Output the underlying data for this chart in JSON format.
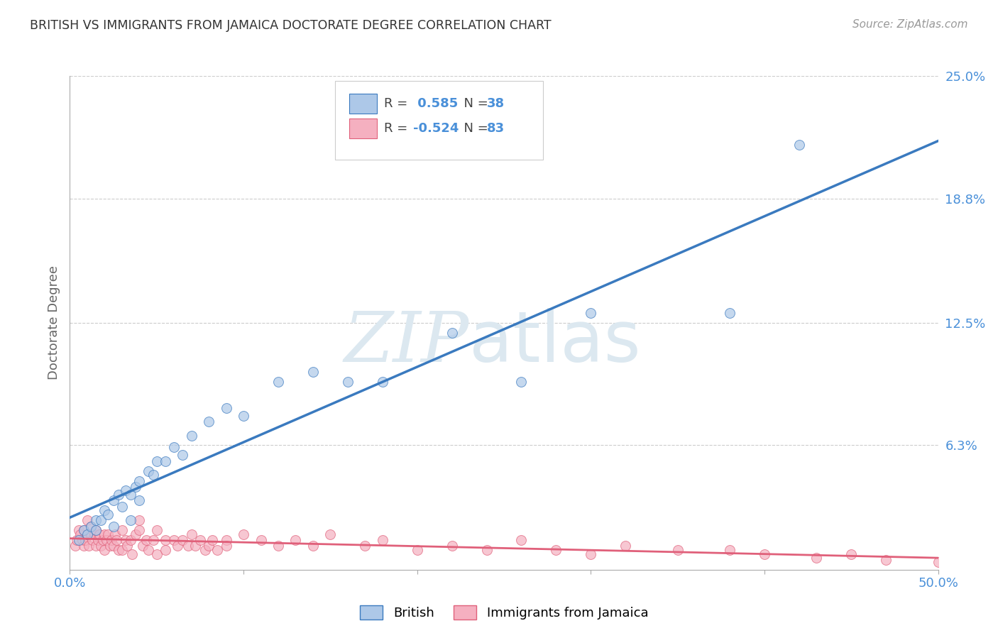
{
  "title": "BRITISH VS IMMIGRANTS FROM JAMAICA DOCTORATE DEGREE CORRELATION CHART",
  "source": "Source: ZipAtlas.com",
  "ylabel": "Doctorate Degree",
  "xlabel": "",
  "xlim": [
    0.0,
    0.5
  ],
  "ylim": [
    0.0,
    0.25
  ],
  "xticks": [
    0.0,
    0.1,
    0.2,
    0.3,
    0.4,
    0.5
  ],
  "xticklabels": [
    "0.0%",
    "",
    "",
    "",
    "",
    "50.0%"
  ],
  "ytick_labels_right": [
    "25.0%",
    "18.8%",
    "12.5%",
    "6.3%",
    ""
  ],
  "ytick_vals_right": [
    0.25,
    0.188,
    0.125,
    0.063,
    0.0
  ],
  "british_R": 0.585,
  "british_N": 38,
  "jamaica_R": -0.524,
  "jamaica_N": 83,
  "british_color": "#adc8e8",
  "jamaica_color": "#f5b0c0",
  "british_line_color": "#3a7abf",
  "jamaica_line_color": "#e0607a",
  "watermark_color": "#dce8f0",
  "background_color": "#ffffff",
  "british_x": [
    0.005,
    0.008,
    0.01,
    0.012,
    0.015,
    0.015,
    0.018,
    0.02,
    0.022,
    0.025,
    0.025,
    0.028,
    0.03,
    0.032,
    0.035,
    0.035,
    0.038,
    0.04,
    0.04,
    0.045,
    0.048,
    0.05,
    0.055,
    0.06,
    0.065,
    0.07,
    0.08,
    0.09,
    0.1,
    0.12,
    0.14,
    0.16,
    0.18,
    0.22,
    0.26,
    0.3,
    0.38,
    0.42
  ],
  "british_y": [
    0.015,
    0.02,
    0.018,
    0.022,
    0.025,
    0.02,
    0.025,
    0.03,
    0.028,
    0.035,
    0.022,
    0.038,
    0.032,
    0.04,
    0.038,
    0.025,
    0.042,
    0.045,
    0.035,
    0.05,
    0.048,
    0.055,
    0.055,
    0.062,
    0.058,
    0.068,
    0.075,
    0.082,
    0.078,
    0.095,
    0.1,
    0.095,
    0.095,
    0.12,
    0.095,
    0.13,
    0.13,
    0.215
  ],
  "jamaica_x": [
    0.003,
    0.004,
    0.005,
    0.006,
    0.007,
    0.008,
    0.008,
    0.009,
    0.01,
    0.01,
    0.011,
    0.012,
    0.012,
    0.013,
    0.014,
    0.015,
    0.015,
    0.016,
    0.017,
    0.018,
    0.019,
    0.02,
    0.02,
    0.021,
    0.022,
    0.023,
    0.024,
    0.025,
    0.026,
    0.027,
    0.028,
    0.03,
    0.03,
    0.032,
    0.033,
    0.035,
    0.036,
    0.038,
    0.04,
    0.04,
    0.042,
    0.044,
    0.045,
    0.048,
    0.05,
    0.05,
    0.055,
    0.055,
    0.06,
    0.062,
    0.065,
    0.068,
    0.07,
    0.072,
    0.075,
    0.078,
    0.08,
    0.082,
    0.085,
    0.09,
    0.09,
    0.1,
    0.11,
    0.12,
    0.13,
    0.14,
    0.15,
    0.17,
    0.18,
    0.2,
    0.22,
    0.24,
    0.26,
    0.28,
    0.3,
    0.32,
    0.35,
    0.38,
    0.4,
    0.43,
    0.45,
    0.47,
    0.5
  ],
  "jamaica_y": [
    0.012,
    0.015,
    0.02,
    0.018,
    0.015,
    0.012,
    0.02,
    0.015,
    0.018,
    0.025,
    0.012,
    0.018,
    0.022,
    0.015,
    0.018,
    0.02,
    0.012,
    0.015,
    0.018,
    0.012,
    0.015,
    0.018,
    0.01,
    0.015,
    0.018,
    0.012,
    0.015,
    0.012,
    0.018,
    0.015,
    0.01,
    0.02,
    0.01,
    0.015,
    0.012,
    0.015,
    0.008,
    0.018,
    0.02,
    0.025,
    0.012,
    0.015,
    0.01,
    0.015,
    0.02,
    0.008,
    0.015,
    0.01,
    0.015,
    0.012,
    0.015,
    0.012,
    0.018,
    0.012,
    0.015,
    0.01,
    0.012,
    0.015,
    0.01,
    0.015,
    0.012,
    0.018,
    0.015,
    0.012,
    0.015,
    0.012,
    0.018,
    0.012,
    0.015,
    0.01,
    0.012,
    0.01,
    0.015,
    0.01,
    0.008,
    0.012,
    0.01,
    0.01,
    0.008,
    0.006,
    0.008,
    0.005,
    0.004
  ]
}
